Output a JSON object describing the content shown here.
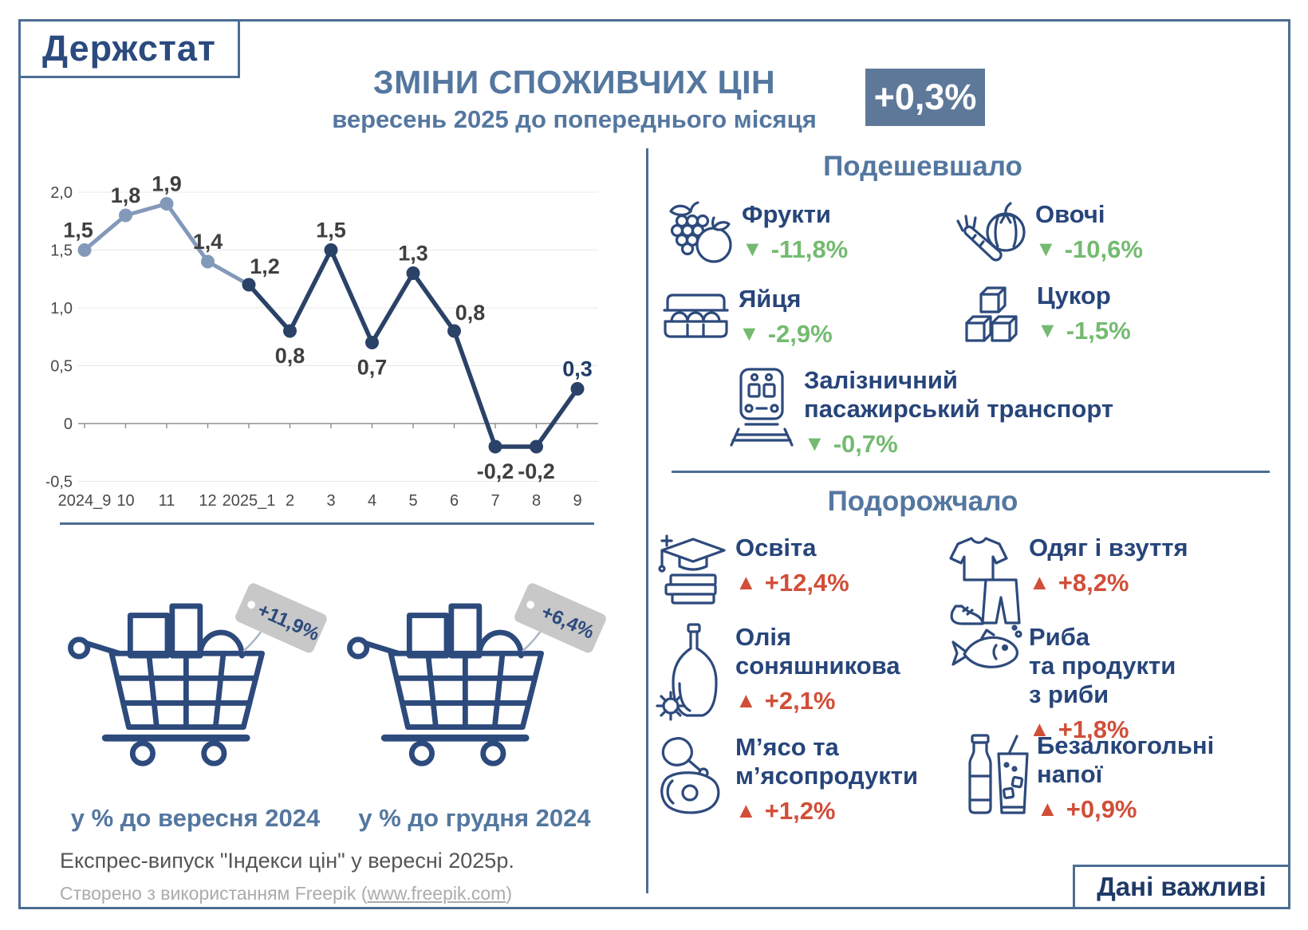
{
  "logo": {
    "text": "Держстат"
  },
  "header": {
    "title": "ЗМІНИ СПОЖИВЧИХ ЦІН",
    "subtitle": "вересень 2025 до попереднього місяця",
    "badge": "+0,3%"
  },
  "colors": {
    "navy": "#2d4a7c",
    "steel_blue": "#54779f",
    "border": "#4b6d94",
    "badge_bg": "#5e7899",
    "green": "#74ba70",
    "red": "#d14e38",
    "tag_gray": "#c8c8c8",
    "line_past": "#8399ba",
    "line_current": "#2b4268"
  },
  "chart_data": {
    "type": "line",
    "title": "",
    "xlabel": "",
    "ylabel": "",
    "x": [
      "2024_9",
      "10",
      "11",
      "12",
      "2025_1",
      "2",
      "3",
      "4",
      "5",
      "6",
      "7",
      "8",
      "9"
    ],
    "values": [
      1.5,
      1.8,
      1.9,
      1.4,
      1.2,
      0.8,
      1.5,
      0.7,
      1.3,
      0.8,
      -0.2,
      -0.2,
      0.3
    ],
    "labels": [
      "1,5",
      "1,8",
      "1,9",
      "1,4",
      "1,2",
      "0,8",
      "1,5",
      "0,7",
      "1,3",
      "0,8",
      "-0,2",
      "-0,2",
      "0,3"
    ],
    "label_side": [
      "above-left",
      "above",
      "above",
      "above",
      "above-right",
      "below",
      "above",
      "below",
      "above",
      "above-right",
      "below",
      "below",
      "above"
    ],
    "split_index": 4,
    "emphasis_index": 12,
    "series_colors": {
      "past": "#8399ba",
      "current": "#2b4268"
    },
    "ylim": [
      -0.5,
      2.0
    ],
    "yticks": [
      2.0,
      1.5,
      1.0,
      0.5,
      0,
      -0.5
    ],
    "ytick_labels": [
      "2,0",
      "1,5",
      "1,0",
      "0,5",
      "0",
      "-0,5"
    ],
    "grid": true,
    "legend": "none"
  },
  "comparisons": {
    "items": [
      {
        "tag": "+11,9%",
        "caption": "у % до вересня 2024"
      },
      {
        "tag": "+6,4%",
        "caption": "у % до грудня 2024"
      }
    ]
  },
  "cheaper": {
    "heading": "Подешевшало",
    "arrow": "▼",
    "items": [
      {
        "label": "Фрукти",
        "value": "-11,8%"
      },
      {
        "label": "Овочі",
        "value": "-10,6%"
      },
      {
        "label": "Яйця",
        "value": "-2,9%"
      },
      {
        "label": "Цукор",
        "value": "-1,5%"
      },
      {
        "label": "Залізничний\nпасажирський транспорт",
        "value": "-0,7%"
      }
    ]
  },
  "pricier": {
    "heading": "Подорожчало",
    "arrow": "▲",
    "items": [
      {
        "label": "Освіта",
        "value": "+12,4%"
      },
      {
        "label": "Одяг і взуття",
        "value": "+8,2%"
      },
      {
        "label": "Олія\nсоняшникова",
        "value": "+2,1%"
      },
      {
        "label": "Риба\nта продукти\nз риби",
        "value": "+1,8%"
      },
      {
        "label": "М’ясо та\nм’ясопродукти",
        "value": "+1,2%"
      },
      {
        "label": "Безалкогольні\nнапої",
        "value": "+0,9%"
      }
    ]
  },
  "footer": {
    "express": "Експрес-випуск \"Індекси цін\" у вересні 2025р.",
    "credit_prefix": "Створено з використанням Freepik (",
    "credit_link": "www.freepik.com",
    "credit_suffix": ")",
    "data_box": "Дані важливі"
  }
}
